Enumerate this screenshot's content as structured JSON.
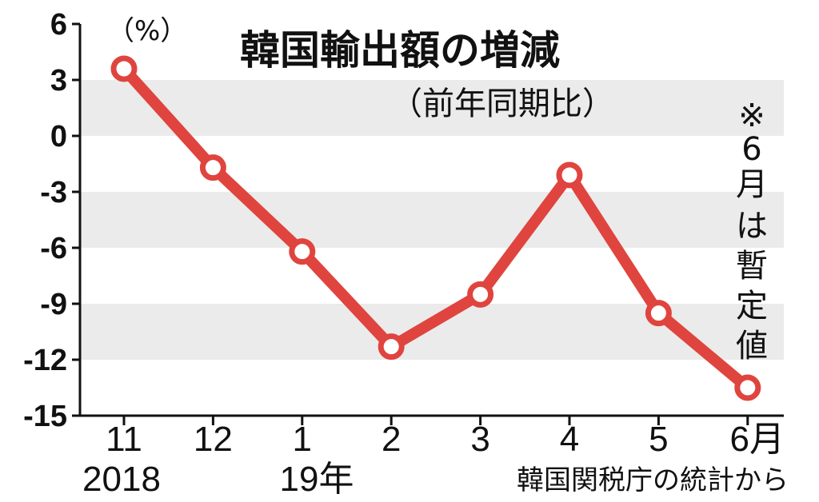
{
  "chart_data": {
    "type": "line",
    "title": "韓国輸出額の増減",
    "subtitle": "（前年同期比）",
    "unit": "（%）",
    "categories": [
      "11",
      "12",
      "1",
      "2",
      "3",
      "4",
      "5",
      "6月"
    ],
    "year_labels": [
      "2018",
      "19年"
    ],
    "series": [
      {
        "values": [
          3.6,
          -1.7,
          -6.2,
          -11.3,
          -8.5,
          -2.1,
          -9.5,
          -13.5
        ]
      }
    ],
    "yticks": [
      "6",
      "3",
      "0",
      "-3",
      "-6",
      "-9",
      "-12",
      "-15"
    ],
    "ylim": [
      -15,
      6
    ],
    "note": [
      "※",
      "6",
      "月",
      "は",
      "暫",
      "定",
      "値"
    ],
    "source": "韓国関税庁の統計から",
    "colors": {
      "line": "#e0443e",
      "band": "#ebebeb",
      "axis": "#111111"
    }
  }
}
